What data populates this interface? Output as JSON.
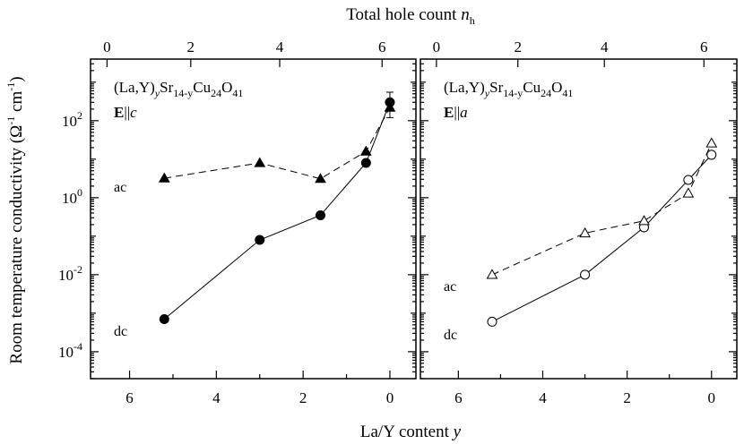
{
  "chart_data": {
    "type": "scatter",
    "top_axis_label": {
      "main": "Total hole count ",
      "var": "n",
      "sub": "h"
    },
    "bottom_axis_label": {
      "main": "La/Y content ",
      "var": "y"
    },
    "ylabel": {
      "main": "Room temperature conductivity (Ω",
      "sup1": "-1",
      "mid": " cm",
      "sup2": "-1",
      "end": ")"
    },
    "xlim": [
      6.9,
      -0.6
    ],
    "ylim_log10": [
      -4.7,
      3.6
    ],
    "x_ticks": [
      6,
      4,
      2,
      0
    ],
    "x_tick_labels": [
      "6",
      "4",
      "2",
      "0"
    ],
    "top_ticks": [
      0,
      2,
      4,
      6
    ],
    "top_tick_labels": [
      "0",
      "2",
      "4",
      "6"
    ],
    "top_ticks_at_y": [
      6.52,
      4.59,
      2.54,
      0.18
    ],
    "y_ticks_log10": [
      -4,
      -2,
      0,
      2
    ],
    "y_tick_labels": [
      {
        "base": "10",
        "exp": "-4"
      },
      {
        "base": "10",
        "exp": "-2"
      },
      {
        "base": "10",
        "exp": "0"
      },
      {
        "base": "10",
        "exp": "2"
      }
    ],
    "panels": [
      {
        "formula": {
          "a": "(La,Y)",
          "b": "y",
          "c": "Sr",
          "d": "14-y",
          "e": "Cu",
          "f": "24",
          "g": "O",
          "h": "41"
        },
        "field": {
          "bold": "E",
          "rest": "||",
          "ital": "c"
        },
        "series": [
          {
            "name": "dc",
            "marker": "circle",
            "filled": true,
            "line": "solid",
            "x": [
              5.2,
              3.0,
              1.6,
              0.55,
              0.0
            ],
            "y": [
              0.0007,
              0.08,
              0.35,
              8,
              300
            ],
            "error_bar": {
              "x": 0.0,
              "low": 120,
              "high": 550
            }
          },
          {
            "name": "ac",
            "marker": "triangle",
            "filled": true,
            "line": "dashed",
            "x": [
              5.2,
              3.0,
              1.6,
              0.55,
              0.0
            ],
            "y": [
              3.2,
              8,
              3.1,
              16,
              220
            ]
          }
        ]
      },
      {
        "formula": {
          "a": "(La,Y)",
          "b": "y",
          "c": "Sr",
          "d": "14-y",
          "e": "Cu",
          "f": "24",
          "g": "O",
          "h": "41"
        },
        "field": {
          "bold": "E",
          "rest": "||",
          "ital": "a"
        },
        "series": [
          {
            "name": "dc",
            "marker": "circle",
            "filled": false,
            "line": "solid",
            "x": [
              5.2,
              3.0,
              1.6,
              0.55,
              0.0
            ],
            "y": [
              0.0006,
              0.01,
              0.17,
              2.9,
              13
            ]
          },
          {
            "name": "ac",
            "marker": "triangle",
            "filled": false,
            "line": "dashed",
            "x": [
              5.2,
              3.0,
              1.6,
              0.55,
              0.0
            ],
            "y": [
              0.01,
              0.12,
              0.25,
              1.3,
              26
            ]
          }
        ]
      }
    ],
    "series_labels": [
      "ac",
      "dc"
    ],
    "grid": false,
    "legend": "inline labels left of series"
  }
}
